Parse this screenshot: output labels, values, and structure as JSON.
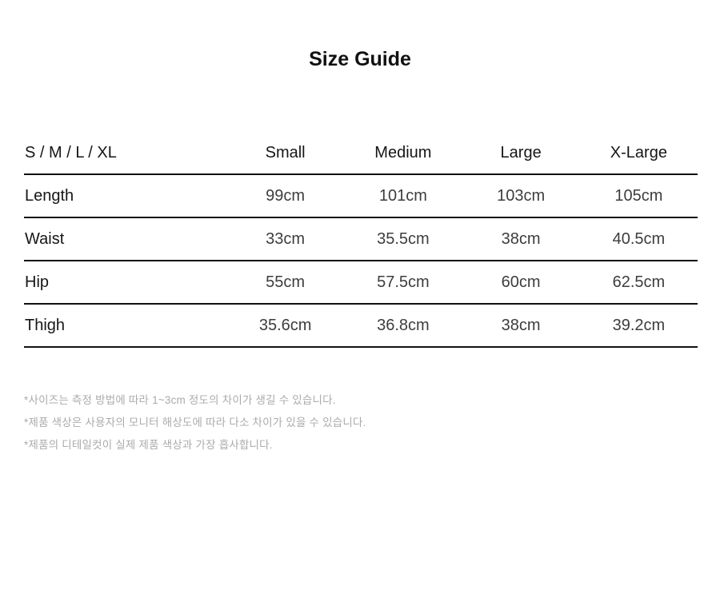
{
  "page": {
    "title": "Size Guide"
  },
  "size_table": {
    "header": {
      "label": "S / M / L / XL",
      "columns": [
        "Small",
        "Medium",
        "Large",
        "X-Large"
      ]
    },
    "rows": [
      {
        "label": "Length",
        "values": [
          "99cm",
          "101cm",
          "103cm",
          "105cm"
        ]
      },
      {
        "label": "Waist",
        "values": [
          "33cm",
          "35.5cm",
          "38cm",
          "40.5cm"
        ]
      },
      {
        "label": "Hip",
        "values": [
          "55cm",
          "57.5cm",
          "60cm",
          "62.5cm"
        ]
      },
      {
        "label": "Thigh",
        "values": [
          "35.6cm",
          "36.8cm",
          "38cm",
          "39.2cm"
        ]
      }
    ]
  },
  "footnotes": [
    "*사이즈는 측정 방법에 따라 1~3cm 정도의 차이가 생길 수 있습니다.",
    "*제품 색상은 사용자의 모니터 해상도에 따라 다소 차이가 있을 수 있습니다.",
    "*제품의 디테일컷이 실제 제품 색상과 가장 흡사합니다."
  ],
  "colors": {
    "background": "#ffffff",
    "text_primary": "#161616",
    "text_value": "#3d3d3d",
    "rule": "#111111",
    "footnote": "#ababab"
  }
}
